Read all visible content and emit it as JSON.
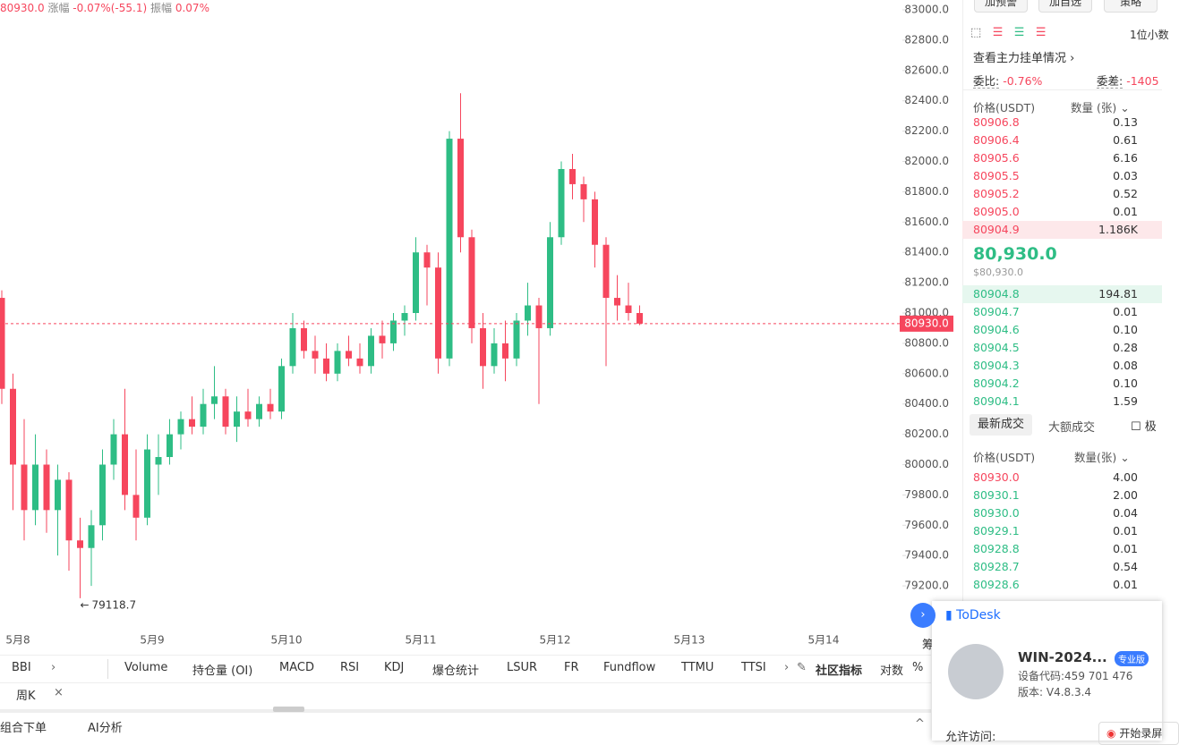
{
  "header": {
    "price": "80930.0",
    "change_label": "涨幅",
    "change": "-0.07%(-55.1)",
    "amp_label": "振幅",
    "amp": "0.07%"
  },
  "chart_data": {
    "type": "candlestick",
    "up_color": "#2ebd85",
    "down_color": "#f6465d",
    "date_labels": [
      "5月8",
      "5月9",
      "5月10",
      "5月11",
      "5月12",
      "5月13",
      "5月14"
    ],
    "candles": [
      [
        81100,
        81150,
        80400,
        80500
      ],
      [
        80500,
        80600,
        79700,
        80000
      ],
      [
        80000,
        80300,
        79500,
        79700
      ],
      [
        79700,
        80200,
        79600,
        80000
      ],
      [
        80000,
        80100,
        79550,
        79700
      ],
      [
        79700,
        80000,
        79400,
        79900
      ],
      [
        79900,
        79950,
        79300,
        79500
      ],
      [
        79500,
        79650,
        79118.7,
        79450
      ],
      [
        79450,
        79700,
        79200,
        79600
      ],
      [
        79600,
        80100,
        79500,
        80000
      ],
      [
        80000,
        80300,
        79900,
        80200
      ],
      [
        80200,
        80500,
        79700,
        79800
      ],
      [
        79800,
        80100,
        79500,
        79650
      ],
      [
        79650,
        80200,
        79600,
        80100
      ],
      [
        80000,
        80200,
        79800,
        80050
      ],
      [
        80050,
        80300,
        80000,
        80200
      ],
      [
        80200,
        80350,
        80100,
        80300
      ],
      [
        80300,
        80450,
        80200,
        80250
      ],
      [
        80250,
        80500,
        80200,
        80400
      ],
      [
        80400,
        80650,
        80300,
        80450
      ],
      [
        80450,
        80500,
        80200,
        80250
      ],
      [
        80250,
        80450,
        80150,
        80350
      ],
      [
        80350,
        80500,
        80250,
        80300
      ],
      [
        80300,
        80450,
        80250,
        80400
      ],
      [
        80400,
        80500,
        80300,
        80350
      ],
      [
        80350,
        80700,
        80300,
        80650
      ],
      [
        80650,
        81000,
        80600,
        80900
      ],
      [
        80900,
        80950,
        80700,
        80750
      ],
      [
        80750,
        80850,
        80600,
        80700
      ],
      [
        80700,
        80800,
        80550,
        80600
      ],
      [
        80600,
        80800,
        80550,
        80750
      ],
      [
        80750,
        80850,
        80650,
        80700
      ],
      [
        80700,
        80800,
        80600,
        80650
      ],
      [
        80650,
        80900,
        80600,
        80850
      ],
      [
        80850,
        80950,
        80700,
        80800
      ],
      [
        80800,
        81000,
        80750,
        80950
      ],
      [
        80950,
        81050,
        80850,
        81000
      ],
      [
        81000,
        81500,
        80950,
        81400
      ],
      [
        81400,
        81450,
        81050,
        81300
      ],
      [
        81300,
        81400,
        80600,
        80700
      ],
      [
        80700,
        82200,
        80650,
        82150
      ],
      [
        82150,
        82450,
        81400,
        81500
      ],
      [
        81500,
        81550,
        80800,
        80900
      ],
      [
        80900,
        81000,
        80500,
        80650
      ],
      [
        80650,
        80900,
        80600,
        80800
      ],
      [
        80800,
        80950,
        80550,
        80700
      ],
      [
        80700,
        81000,
        80650,
        80950
      ],
      [
        80950,
        81200,
        80850,
        81050
      ],
      [
        81050,
        81100,
        80400,
        80900
      ],
      [
        80900,
        81600,
        80850,
        81500
      ],
      [
        81500,
        82000,
        81450,
        81950
      ],
      [
        81950,
        82050,
        81750,
        81850
      ],
      [
        81850,
        81900,
        81600,
        81750
      ],
      [
        81750,
        81800,
        81300,
        81450
      ],
      [
        81450,
        81500,
        80650,
        81100
      ],
      [
        81100,
        81250,
        80950,
        81050
      ],
      [
        81050,
        81200,
        80950,
        81000
      ],
      [
        81000,
        81050,
        80920,
        80930
      ]
    ],
    "ylim": [
      78935,
      83065
    ],
    "yticks": [
      {
        "value": 79200,
        "label": "79200.0"
      },
      {
        "value": 79400,
        "label": "79400.0"
      },
      {
        "value": 79600,
        "label": "79600.0"
      },
      {
        "value": 79800,
        "label": "79800.0"
      },
      {
        "value": 80000,
        "label": "80000.0"
      },
      {
        "value": 80200,
        "label": "80200.0"
      },
      {
        "value": 80400,
        "label": "80400.0"
      },
      {
        "value": 80600,
        "label": "80600.0"
      },
      {
        "value": 80800,
        "label": "80800.0"
      },
      {
        "value": 81000,
        "label": "81000.0"
      },
      {
        "value": 81200,
        "label": "81200.0"
      },
      {
        "value": 81400,
        "label": "81400.0"
      },
      {
        "value": 81600,
        "label": "81600.0"
      },
      {
        "value": 81800,
        "label": "81800.0"
      },
      {
        "value": 82000,
        "label": "82000.0"
      },
      {
        "value": 82200,
        "label": "82200.0"
      },
      {
        "value": 82400,
        "label": "82400.0"
      },
      {
        "value": 82600,
        "label": "82600.0"
      },
      {
        "value": 82800,
        "label": "82800.0"
      },
      {
        "value": 83000,
        "label": "83000.0"
      }
    ],
    "last_price": {
      "value": 80930,
      "label": "80930.0"
    },
    "low_marker": 79118.7
  },
  "indicators": [
    "BBI",
    "Volume",
    "持仓量 (OI)",
    "MACD",
    "RSI",
    "KDJ",
    "爆仓统计",
    "LSUR",
    "FR",
    "Fundflow",
    "TTMU",
    "TTSI",
    "社区指标",
    "对数",
    "%"
  ],
  "period": "周K",
  "bottom_tabs": [
    "组合下单",
    "AI分析"
  ],
  "side_overflow": "筹",
  "panel": {
    "buttons": [
      "加预警",
      "加自选",
      "策略"
    ],
    "decimals": "1位小数",
    "main_orders": "查看主力挂单情况",
    "ratio_label": "委比:",
    "ratio": "-0.76%",
    "diff_label": "委差:",
    "diff": "-1405",
    "book_header": [
      "价格(USDT)",
      "数量 (张)"
    ],
    "asks": [
      [
        "80906.8",
        "0.13"
      ],
      [
        "80906.4",
        "0.61"
      ],
      [
        "80905.6",
        "6.16"
      ],
      [
        "80905.5",
        "0.03"
      ],
      [
        "80905.2",
        "0.52"
      ],
      [
        "80905.0",
        "0.01"
      ],
      [
        "80904.9",
        "1.186K"
      ]
    ],
    "last": "80,930.0",
    "last_usd": "$80,930.0",
    "bids": [
      [
        "80904.8",
        "194.81"
      ],
      [
        "80904.7",
        "0.01"
      ],
      [
        "80904.6",
        "0.10"
      ],
      [
        "80904.5",
        "0.28"
      ],
      [
        "80904.3",
        "0.08"
      ],
      [
        "80904.2",
        "0.10"
      ],
      [
        "80904.1",
        "1.59"
      ]
    ],
    "trade_tabs": [
      "最新成交",
      "大额成交",
      "极"
    ],
    "trade_header": [
      "价格(USDT)",
      "数量(张)"
    ],
    "trades": [
      [
        "80930.0",
        "4.00",
        "#f6465d"
      ],
      [
        "80930.1",
        "2.00",
        "#2ebd85"
      ],
      [
        "80930.0",
        "0.04",
        "#2ebd85"
      ],
      [
        "80929.1",
        "0.01",
        "#2ebd85"
      ],
      [
        "80928.8",
        "0.01",
        "#2ebd85"
      ],
      [
        "80928.7",
        "0.54",
        "#2ebd85"
      ],
      [
        "80928.6",
        "0.01",
        "#2ebd85"
      ]
    ]
  },
  "todesk": {
    "brand": "ToDesk",
    "device": "WIN-2024...",
    "edition": "专业版",
    "code": "设备代码:459 701 476",
    "version": "版本: V4.8.3.4",
    "allow": "允许访问:",
    "record": "开始录屏"
  }
}
